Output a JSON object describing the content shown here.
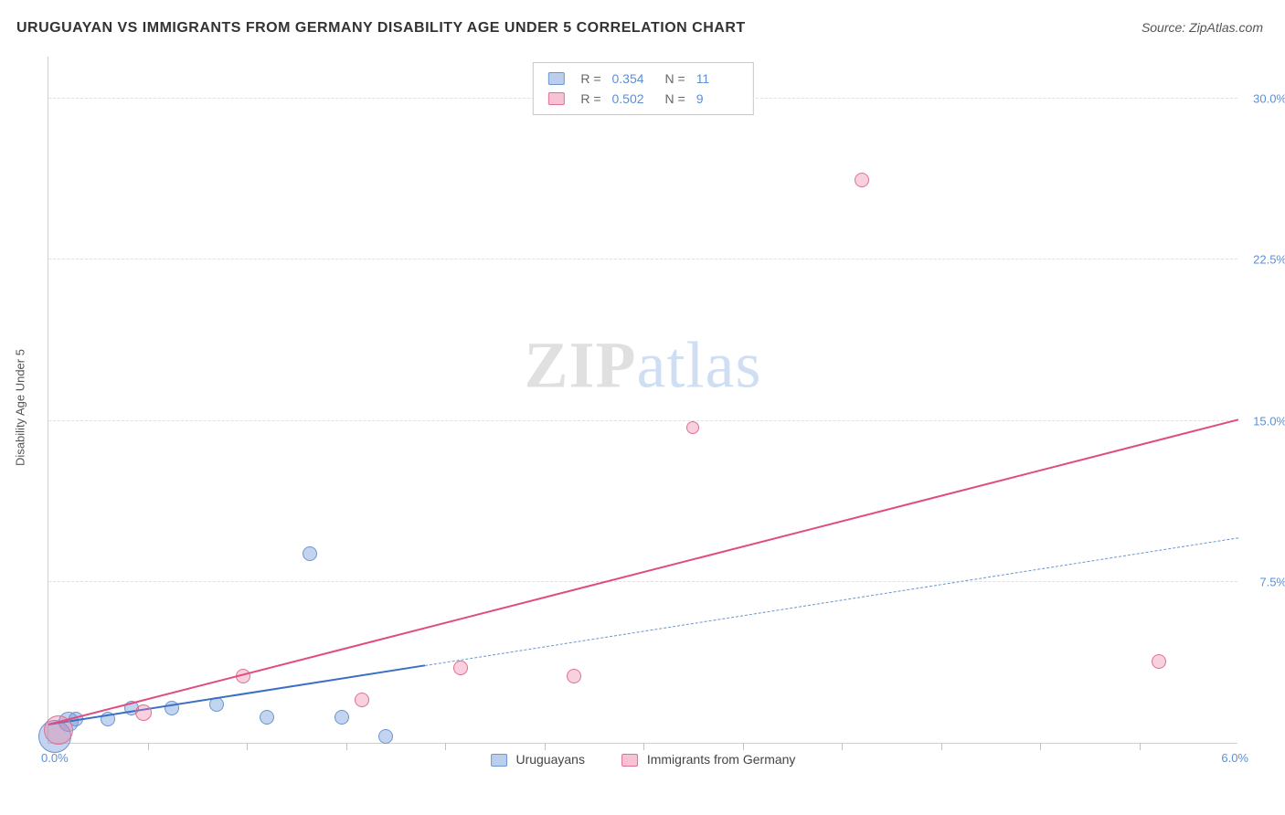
{
  "title": "URUGUAYAN VS IMMIGRANTS FROM GERMANY DISABILITY AGE UNDER 5 CORRELATION CHART",
  "source_prefix": "Source: ",
  "source_name": "ZipAtlas.com",
  "ylabel": "Disability Age Under 5",
  "watermark_zip": "ZIP",
  "watermark_atlas": "atlas",
  "chart": {
    "type": "scatter",
    "xlim": [
      0.0,
      6.0
    ],
    "ylim": [
      0.0,
      32.0
    ],
    "xtick_step": 0.5,
    "yticks": [
      7.5,
      15.0,
      22.5,
      30.0
    ],
    "ytick_labels": [
      "7.5%",
      "15.0%",
      "22.5%",
      "30.0%"
    ],
    "x0_label": "0.0%",
    "xmax_label": "6.0%",
    "background_color": "#ffffff",
    "grid_color": "#e0e0e0",
    "axis_color": "#d0d0d0",
    "tick_label_color": "#5b8fd6",
    "series": [
      {
        "name": "Uruguayans",
        "key": "uruguayans",
        "color_fill": "rgba(120,160,220,0.45)",
        "color_stroke": "#6a95d0",
        "trend_color_solid": "#3b6fc4",
        "trend_color_dash": "#6a95d0",
        "R": "0.354",
        "N": "11",
        "points": [
          {
            "x": 0.03,
            "y": 0.3,
            "r": 18
          },
          {
            "x": 0.1,
            "y": 1.0,
            "r": 11
          },
          {
            "x": 0.14,
            "y": 1.1,
            "r": 8
          },
          {
            "x": 0.3,
            "y": 1.1,
            "r": 8
          },
          {
            "x": 0.42,
            "y": 1.6,
            "r": 8
          },
          {
            "x": 0.62,
            "y": 1.6,
            "r": 8
          },
          {
            "x": 0.85,
            "y": 1.8,
            "r": 8
          },
          {
            "x": 1.1,
            "y": 1.2,
            "r": 8
          },
          {
            "x": 1.48,
            "y": 1.2,
            "r": 8
          },
          {
            "x": 1.7,
            "y": 0.3,
            "r": 8
          },
          {
            "x": 1.32,
            "y": 8.8,
            "r": 8
          }
        ],
        "trend": {
          "x1": 0.0,
          "y1": 0.8,
          "x2": 6.0,
          "y2": 9.5,
          "solid_to_x": 1.9
        }
      },
      {
        "name": "Immigrants from Germany",
        "key": "immigrants_germany",
        "color_fill": "rgba(235,120,160,0.35)",
        "color_stroke": "#e07090",
        "trend_color_solid": "#e04d7d",
        "R": "0.502",
        "N": "9",
        "points": [
          {
            "x": 0.05,
            "y": 0.6,
            "r": 16
          },
          {
            "x": 0.48,
            "y": 1.4,
            "r": 9
          },
          {
            "x": 0.98,
            "y": 3.1,
            "r": 8
          },
          {
            "x": 1.58,
            "y": 2.0,
            "r": 8
          },
          {
            "x": 2.08,
            "y": 3.5,
            "r": 8
          },
          {
            "x": 2.65,
            "y": 3.1,
            "r": 8
          },
          {
            "x": 3.25,
            "y": 14.7,
            "r": 7
          },
          {
            "x": 4.1,
            "y": 26.2,
            "r": 8
          },
          {
            "x": 5.6,
            "y": 3.8,
            "r": 8
          }
        ],
        "trend": {
          "x1": 0.0,
          "y1": 0.8,
          "x2": 6.0,
          "y2": 15.0,
          "solid_to_x": 6.0
        }
      }
    ],
    "legend_bottom": [
      {
        "swatch": "blue",
        "label": "Uruguayans"
      },
      {
        "swatch": "pink",
        "label": "Immigrants from Germany"
      }
    ],
    "stats_box": {
      "rows": [
        {
          "swatch": "blue",
          "R": "0.354",
          "N": "11"
        },
        {
          "swatch": "pink",
          "R": "0.502",
          "N": "9"
        }
      ]
    }
  }
}
